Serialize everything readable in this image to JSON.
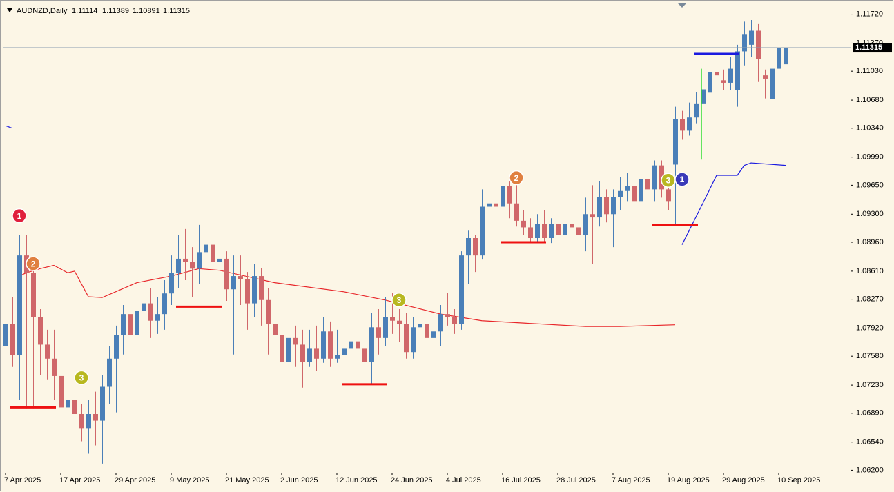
{
  "chart_data": {
    "type": "candlestick",
    "title": "AUDNZD,Daily",
    "categories": [
      "7 Apr 2025",
      null,
      null,
      null,
      null,
      null,
      null,
      null,
      "17 Apr 2025",
      null,
      null,
      null,
      null,
      null,
      null,
      null,
      "29 Apr 2025",
      null,
      null,
      null,
      null,
      null,
      null,
      null,
      "9 May 2025",
      null,
      null,
      null,
      null,
      null,
      null,
      null,
      "21 May 2025",
      null,
      null,
      null,
      null,
      null,
      null,
      null,
      "2 Jun 2025",
      null,
      null,
      null,
      null,
      null,
      null,
      null,
      "12 Jun 2025",
      null,
      null,
      null,
      null,
      null,
      null,
      null,
      "24 Jun 2025",
      null,
      null,
      null,
      null,
      null,
      null,
      null,
      "4 Jul 2025",
      null,
      null,
      null,
      null,
      null,
      null,
      null,
      "16 Jul 2025",
      null,
      null,
      null,
      null,
      null,
      null,
      null,
      "28 Jul 2025",
      null,
      null,
      null,
      null,
      null,
      null,
      null,
      "7 Aug 2025",
      null,
      null,
      null,
      null,
      null,
      null,
      null,
      "19 Aug 2025",
      null,
      null,
      null,
      null,
      null,
      null,
      null,
      "29 Aug 2025",
      null,
      null,
      null,
      null,
      null,
      null,
      null,
      "10 Sep 2025",
      null
    ],
    "open": [
      1.077,
      1.0797,
      1.0759,
      1.088,
      1.0859,
      1.0805,
      1.0772,
      1.0755,
      1.0734,
      1.0696,
      1.0705,
      1.0688,
      1.0671,
      1.0688,
      1.068,
      1.0721,
      1.0755,
      1.0784,
      1.0809,
      1.0784,
      1.0813,
      1.0822,
      1.0801,
      1.0809,
      1.0834,
      1.0859,
      1.0876,
      1.0872,
      1.0864,
      1.0884,
      1.0893,
      1.0872,
      1.0876,
      1.0839,
      1.0855,
      1.0851,
      1.0822,
      1.0855,
      1.0826,
      1.0797,
      1.0784,
      1.0751,
      1.078,
      1.0772,
      1.0751,
      1.0767,
      1.0755,
      1.0788,
      1.0755,
      1.0759,
      1.0767,
      1.0776,
      1.0767,
      1.0751,
      1.0793,
      1.078,
      1.0805,
      1.0801,
      1.0797,
      1.0763,
      1.0793,
      1.0797,
      1.078,
      1.0788,
      1.0809,
      1.0805,
      1.0797,
      1.088,
      1.0901,
      1.088,
      1.0939,
      1.0943,
      1.0939,
      1.0964,
      1.0943,
      1.0922,
      1.0914,
      1.0901,
      1.0918,
      1.0901,
      1.0918,
      1.0905,
      1.0918,
      1.0914,
      1.0905,
      1.093,
      1.0926,
      1.0951,
      1.093,
      1.0951,
      1.0958,
      1.0964,
      1.0945,
      1.0972,
      1.096,
      1.0989,
      1.096,
      1.099,
      1.1045,
      1.1031,
      1.1047,
      1.1064,
      1.1077,
      1.1102,
      1.1092,
      1.1089,
      1.108,
      1.1127,
      1.1135,
      1.1152,
      1.1098,
      1.1069,
      1.1106,
      1.11114
    ],
    "high": [
      1.0825,
      1.083,
      1.0905,
      1.0905,
      1.0868,
      1.0815,
      1.079,
      1.079,
      1.075,
      1.0745,
      1.072,
      1.07,
      1.0705,
      1.0715,
      1.0735,
      1.077,
      1.0795,
      1.082,
      1.0825,
      1.0835,
      1.0845,
      1.084,
      1.083,
      1.085,
      1.088,
      1.0905,
      1.0912,
      1.089,
      1.0917,
      1.0912,
      1.0905,
      1.0895,
      1.0885,
      1.088,
      1.088,
      1.086,
      1.087,
      1.0865,
      1.084,
      1.081,
      1.08,
      1.079,
      1.0795,
      1.079,
      1.079,
      1.0795,
      1.0805,
      1.08,
      1.079,
      1.0795,
      1.0805,
      1.079,
      1.078,
      1.081,
      1.0815,
      1.083,
      1.0835,
      1.0815,
      1.081,
      1.0805,
      1.0815,
      1.081,
      1.08,
      1.082,
      1.0835,
      1.0815,
      1.0885,
      1.091,
      1.0905,
      1.096,
      1.0955,
      1.0975,
      1.0985,
      1.0975,
      1.0978,
      1.0935,
      1.0925,
      1.093,
      1.0935,
      1.0925,
      1.0935,
      1.094,
      1.0935,
      1.0928,
      1.095,
      1.0965,
      1.097,
      1.096,
      1.096,
      1.0975,
      1.098,
      1.0975,
      1.0985,
      1.098,
      1.0995,
      1.0995,
      1.0975,
      1.106,
      1.1055,
      1.1065,
      1.1078,
      1.109,
      1.111,
      1.1118,
      1.1105,
      1.112,
      1.1135,
      1.1163,
      1.1165,
      1.116,
      1.1105,
      1.1115,
      1.1139,
      1.11389
    ],
    "low": [
      1.07,
      1.0745,
      1.0705,
      1.0695,
      1.0695,
      1.0735,
      1.073,
      1.0705,
      1.0685,
      1.068,
      1.0672,
      1.0655,
      1.064,
      1.065,
      1.0628,
      1.07,
      1.069,
      1.076,
      1.077,
      1.0775,
      1.079,
      1.078,
      1.0785,
      1.079,
      1.082,
      1.084,
      1.085,
      1.083,
      1.0845,
      1.086,
      1.0855,
      1.0825,
      1.0825,
      1.076,
      1.082,
      1.079,
      1.0805,
      1.0795,
      1.076,
      1.076,
      1.074,
      1.068,
      1.0745,
      1.072,
      1.0745,
      1.074,
      1.075,
      1.0745,
      1.075,
      1.075,
      1.0755,
      1.0745,
      1.073,
      1.0725,
      1.076,
      1.077,
      1.0785,
      1.0775,
      1.0755,
      1.0755,
      1.077,
      1.0765,
      1.0765,
      1.077,
      1.0795,
      1.0785,
      1.079,
      1.0845,
      1.086,
      1.0875,
      1.092,
      1.0925,
      1.0935,
      1.0925,
      1.0915,
      1.0905,
      1.0895,
      1.0895,
      1.0895,
      1.0895,
      1.088,
      1.089,
      1.088,
      1.0878,
      1.0885,
      1.087,
      1.0915,
      1.092,
      1.089,
      1.0935,
      1.0945,
      1.0935,
      1.0935,
      1.094,
      1.0945,
      1.095,
      1.0935,
      1.0918,
      1.102,
      1.1025,
      1.104,
      1.106,
      1.107,
      1.1085,
      1.108,
      1.108,
      1.106,
      1.111,
      1.112,
      1.109,
      1.107,
      1.1065,
      1.1085,
      1.10891
    ],
    "close": [
      1.0797,
      1.0759,
      1.088,
      1.0859,
      1.0805,
      1.0772,
      1.0755,
      1.0734,
      1.0696,
      1.0705,
      1.0688,
      1.0671,
      1.0688,
      1.068,
      1.0721,
      1.0755,
      1.0784,
      1.0809,
      1.0784,
      1.0813,
      1.0822,
      1.0801,
      1.0809,
      1.0834,
      1.0859,
      1.0876,
      1.0872,
      1.0864,
      1.0884,
      1.0893,
      1.0872,
      1.0876,
      1.0839,
      1.0855,
      1.0851,
      1.0822,
      1.0855,
      1.0826,
      1.0797,
      1.0784,
      1.0751,
      1.078,
      1.0772,
      1.0751,
      1.0767,
      1.0755,
      1.0788,
      1.0755,
      1.0759,
      1.0767,
      1.0776,
      1.0767,
      1.0751,
      1.0793,
      1.078,
      1.0805,
      1.0801,
      1.0797,
      1.0763,
      1.0793,
      1.0797,
      1.078,
      1.0788,
      1.0809,
      1.0805,
      1.0797,
      1.088,
      1.0901,
      1.088,
      1.0939,
      1.0943,
      1.0939,
      1.0964,
      1.0943,
      1.0922,
      1.0914,
      1.0901,
      1.0918,
      1.0901,
      1.0918,
      1.0905,
      1.0918,
      1.0914,
      1.0905,
      1.093,
      1.0926,
      1.0951,
      1.093,
      1.0951,
      1.0958,
      1.0964,
      1.0945,
      1.0972,
      1.096,
      1.0989,
      1.096,
      1.0945,
      1.1045,
      1.1031,
      1.1047,
      1.1064,
      1.1081,
      1.1102,
      1.1098,
      1.1089,
      1.1106,
      1.1127,
      1.1148,
      1.1152,
      1.1118,
      1.1094,
      1.1106,
      1.1131,
      1.11315
    ],
    "bull_color": "#4a7fb8",
    "bear_color": "#d0676a",
    "ylim": [
      1.0617,
      1.1185
    ],
    "yticks": [
      {
        "value": 1.1172,
        "label": "1.11720"
      },
      {
        "value": 1.1137,
        "label": "1.11370"
      },
      {
        "value": 1.1103,
        "label": "1.11030"
      },
      {
        "value": 1.1068,
        "label": "1.10680"
      },
      {
        "value": 1.1034,
        "label": "1.10340"
      },
      {
        "value": 1.0999,
        "label": "1.09990"
      },
      {
        "value": 1.0965,
        "label": "1.09650"
      },
      {
        "value": 1.093,
        "label": "1.09300"
      },
      {
        "value": 1.0896,
        "label": "1.08960"
      },
      {
        "value": 1.0861,
        "label": "1.08610"
      },
      {
        "value": 1.0827,
        "label": "1.08270"
      },
      {
        "value": 1.0792,
        "label": "1.07920"
      },
      {
        "value": 1.0758,
        "label": "1.07580"
      },
      {
        "value": 1.0723,
        "label": "1.07230"
      },
      {
        "value": 1.0689,
        "label": "1.06890"
      },
      {
        "value": 1.0654,
        "label": "1.06540"
      },
      {
        "value": 1.062,
        "label": "1.06200"
      }
    ],
    "ma": {
      "color": "#e8262a",
      "x": [
        2,
        3,
        5,
        7,
        9,
        10,
        12,
        14,
        19,
        24,
        28,
        31,
        39,
        49,
        55,
        63,
        69,
        84,
        89,
        97
      ],
      "values": [
        1.0855,
        1.0859,
        1.0864,
        1.0868,
        1.0859,
        1.0861,
        1.083,
        1.0829,
        1.0847,
        1.0855,
        1.0864,
        1.0862,
        1.0847,
        1.0836,
        1.0826,
        1.0809,
        1.0801,
        1.0794,
        1.0794,
        1.0796
      ]
    },
    "signal_line": {
      "color": "#1a1ae0",
      "pieces": [
        {
          "x": [
            0,
            1
          ],
          "values": [
            1.1037,
            1.1034
          ]
        },
        {
          "x": [
            98,
            101,
            103,
            106,
            107,
            108,
            113
          ],
          "values": [
            1.0893,
            1.0943,
            1.0977,
            1.0977,
            1.0989,
            1.0992,
            1.0989
          ]
        }
      ]
    },
    "green_bar": {
      "color": "#33dd33",
      "index": 101,
      "low": 1.0996,
      "high": 1.1106
    },
    "levels": [
      {
        "color": "#ee1111",
        "value": 1.0696,
        "start": 1,
        "end": 7
      },
      {
        "color": "#ee1111",
        "value": 1.0818,
        "start": 25,
        "end": 31
      },
      {
        "color": "#ee1111",
        "value": 1.0724,
        "start": 49,
        "end": 55
      },
      {
        "color": "#ee1111",
        "value": 1.0896,
        "start": 72,
        "end": 78
      },
      {
        "color": "#ee1111",
        "value": 1.0917,
        "start": 94,
        "end": 100
      },
      {
        "color": "#1a1ae0",
        "value": 1.1124,
        "start": 100,
        "end": 106
      }
    ],
    "markers": [
      {
        "label": "1",
        "index": 2,
        "value": 1.0928,
        "color": "#e0203c"
      },
      {
        "label": "2",
        "index": 4,
        "value": 1.087,
        "color": "#e08040"
      },
      {
        "label": "3",
        "index": 11,
        "value": 1.0732,
        "color": "#b8b820"
      },
      {
        "label": "3",
        "index": 57,
        "value": 1.0826,
        "color": "#b8b820"
      },
      {
        "label": "2",
        "index": 74,
        "value": 1.0974,
        "color": "#e08040"
      },
      {
        "label": "3",
        "index": 96,
        "value": 1.0971,
        "color": "#b8b820"
      },
      {
        "label": "1",
        "index": 98,
        "value": 1.0972,
        "color": "#3a3ab8"
      }
    ],
    "price_line_color": "#8a9cb0"
  }
}
